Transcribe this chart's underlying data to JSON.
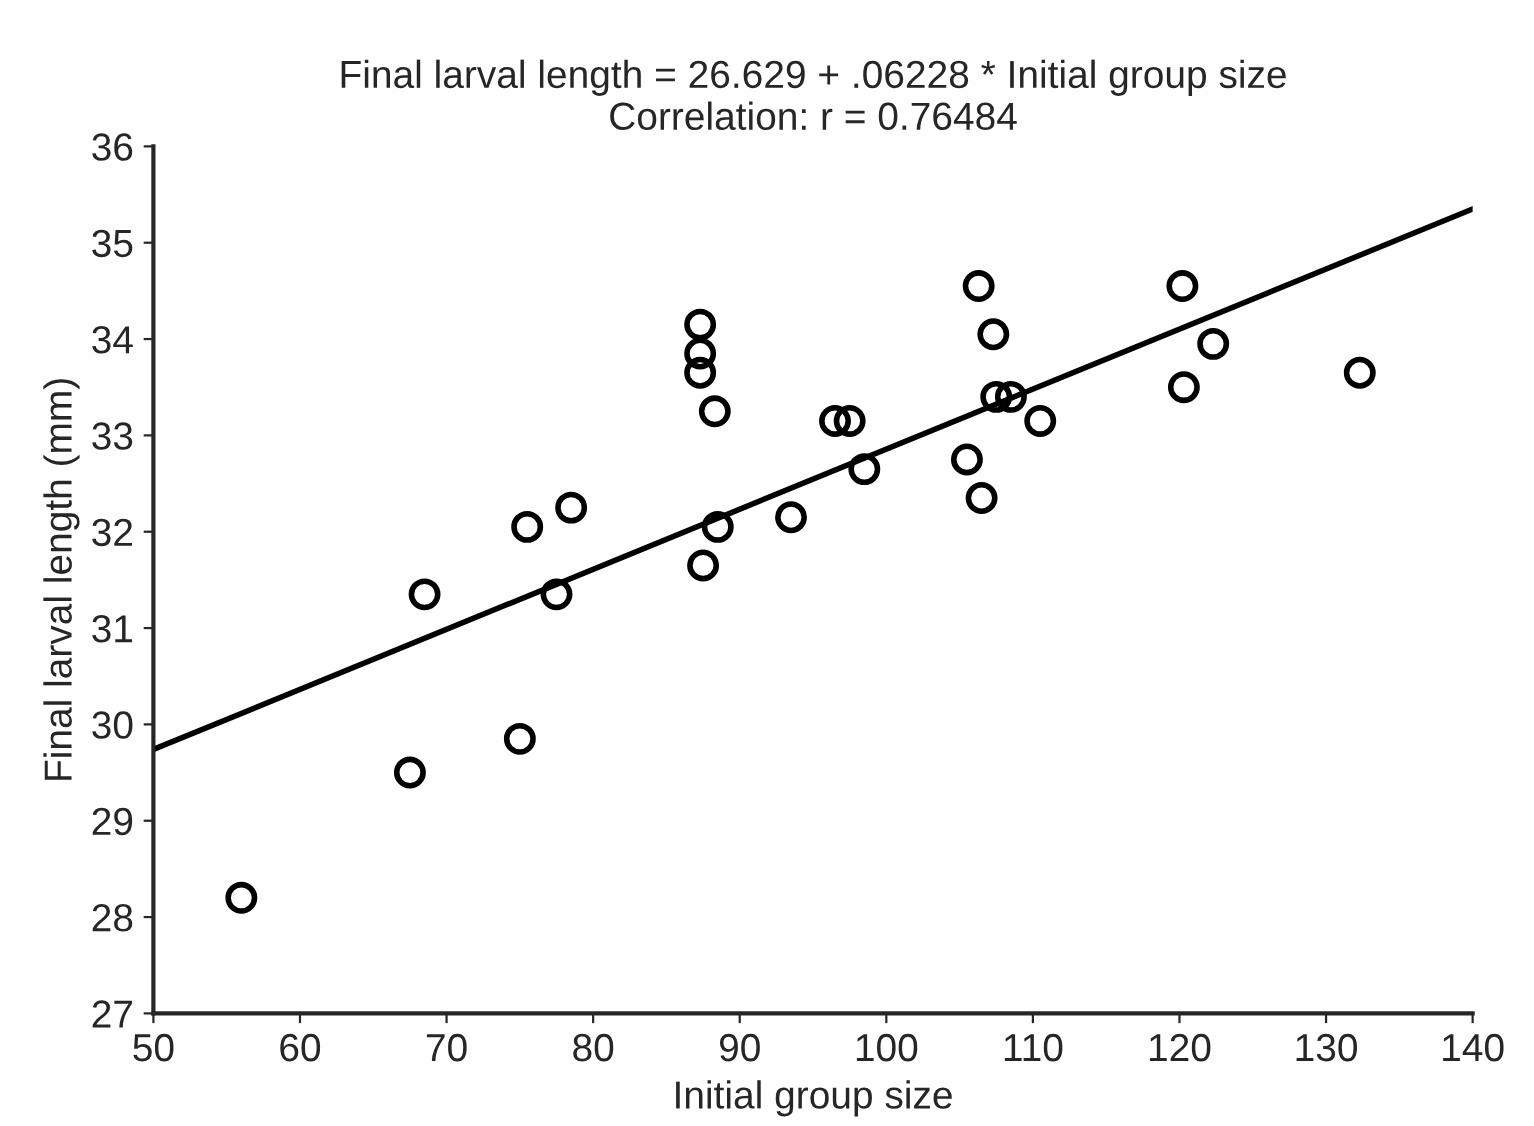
{
  "chart_data": {
    "type": "scatter",
    "title": "Final larval length = 26.629 + .06228 * Initial group size\nCorrelation: r = 0.76484",
    "xlabel": "Initial group size",
    "ylabel": "Final larval length (mm)",
    "xlim": [
      50,
      140
    ],
    "xticks": [
      50,
      60,
      70,
      80,
      90,
      100,
      110,
      120,
      130,
      140
    ],
    "ylim": [
      27,
      36
    ],
    "yticks": [
      27,
      28,
      29,
      30,
      31,
      32,
      33,
      34,
      35,
      36
    ],
    "grid": false,
    "series": [
      {
        "marker": "circle",
        "color": "#000000",
        "x": [
          56,
          67.5,
          68.5,
          75,
          75.5,
          77.5,
          78.5,
          87.3,
          87.3,
          87.3,
          88.3,
          87.5,
          88.5,
          93.5,
          96.5,
          97.5,
          98.5,
          105.5,
          106.3,
          106.5,
          107.3,
          107.5,
          108.5,
          110.5,
          120.2,
          120.3,
          122.3,
          132.3
        ],
        "values": [
          28.2,
          29.5,
          31.35,
          29.85,
          32.05,
          31.35,
          32.25,
          34.15,
          33.85,
          33.65,
          33.25,
          31.65,
          32.05,
          32.15,
          33.15,
          33.15,
          32.65,
          32.75,
          34.55,
          32.35,
          34.05,
          33.4,
          33.4,
          33.15,
          34.55,
          33.5,
          33.95,
          33.65
        ]
      },
      {
        "type": "line",
        "marker": "none",
        "color": "#000000",
        "x": [
          50,
          140
        ],
        "values": [
          29.74,
          35.35
        ]
      }
    ]
  }
}
